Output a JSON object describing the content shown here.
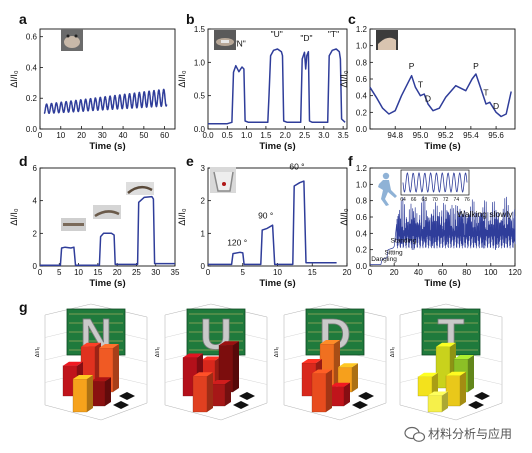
{
  "colors": {
    "trace": "#2f3d9a",
    "photo_dark": "#454545",
    "photo_light": "#d8d8d8",
    "pcb_green": "#1f7a3c",
    "letter_metal": "#c9c9c9",
    "bars_n": [
      "#c0141b",
      "#e0321f",
      "#f05a24",
      "#f6a21c",
      "#8a1010"
    ],
    "bars_u": [
      "#b3101a",
      "#d8281c",
      "#7c0d0d",
      "#e04020",
      "#a61717"
    ],
    "bars_d": [
      "#d8281c",
      "#f07020",
      "#f6a01c",
      "#e84c1e",
      "#c0141b"
    ],
    "bars_t": [
      "#f3e21c",
      "#c9d21c",
      "#8cbf26",
      "#f6f04a",
      "#e9c81a"
    ]
  },
  "icons": {
    "runner": "running-person-icon",
    "watermark": "wechat-logo-icon"
  },
  "watermark": {
    "text": "材料分析与应用"
  },
  "chart_data": [
    {
      "panel": "a",
      "type": "line",
      "xlabel": "Time (s)",
      "ylabel": "ΔI/I₀",
      "xlim": [
        0,
        65
      ],
      "ylim": [
        0.0,
        0.65
      ],
      "xticks": [
        "0",
        "10",
        "20",
        "30",
        "40",
        "50",
        "60"
      ],
      "yticks": [
        "0.0",
        "0.2",
        "0.4",
        "0.6"
      ],
      "signal": {
        "kind": "periodic",
        "t0": 2,
        "t1": 61,
        "period": 2.35,
        "base_start": 0.1,
        "base_end": 0.15,
        "peak_start": 0.16,
        "peak_end": 0.26
      }
    },
    {
      "panel": "b",
      "type": "line",
      "xlabel": "Time (s)",
      "ylabel": "ΔI/I₀",
      "xlim": [
        0,
        3.6
      ],
      "ylim": [
        0.0,
        1.5
      ],
      "xticks": [
        "0.0",
        "0.5",
        "1.0",
        "1.5",
        "2.0",
        "2.5",
        "3.0",
        "3.5"
      ],
      "yticks": [
        "0.0",
        "0.5",
        "1.0",
        "1.5"
      ],
      "annotations": [
        {
          "text": "\"N\"",
          "x": 0.82,
          "y": 1.24
        },
        {
          "text": "\"U\"",
          "x": 1.78,
          "y": 1.38
        },
        {
          "text": "\"D\"",
          "x": 2.55,
          "y": 1.32
        },
        {
          "text": "\"T\"",
          "x": 3.25,
          "y": 1.38
        }
      ],
      "points": [
        [
          0.0,
          0.08
        ],
        [
          0.5,
          0.08
        ],
        [
          0.62,
          0.1
        ],
        [
          0.66,
          0.85
        ],
        [
          0.72,
          0.95
        ],
        [
          0.8,
          0.86
        ],
        [
          0.88,
          0.93
        ],
        [
          0.93,
          0.9
        ],
        [
          0.96,
          0.12
        ],
        [
          1.05,
          0.1
        ],
        [
          1.55,
          0.1
        ],
        [
          1.58,
          0.5
        ],
        [
          1.62,
          1.1
        ],
        [
          1.7,
          1.18
        ],
        [
          1.8,
          1.2
        ],
        [
          1.9,
          1.16
        ],
        [
          1.93,
          1.1
        ],
        [
          1.96,
          0.12
        ],
        [
          2.05,
          0.1
        ],
        [
          2.4,
          0.1
        ],
        [
          2.44,
          1.05
        ],
        [
          2.5,
          1.15
        ],
        [
          2.53,
          0.9
        ],
        [
          2.56,
          1.1
        ],
        [
          2.6,
          1.16
        ],
        [
          2.63,
          0.12
        ],
        [
          2.7,
          0.1
        ],
        [
          3.1,
          0.1
        ],
        [
          3.14,
          1.1
        ],
        [
          3.22,
          1.18
        ],
        [
          3.32,
          1.2
        ],
        [
          3.4,
          1.16
        ],
        [
          3.43,
          1.05
        ],
        [
          3.46,
          0.15
        ],
        [
          3.55,
          0.1
        ]
      ]
    },
    {
      "panel": "c",
      "type": "line",
      "xlabel": "Time (s)",
      "ylabel": "ΔI/I₀",
      "xlim": [
        94.6,
        95.75
      ],
      "ylim": [
        0.0,
        1.2
      ],
      "xticks": [
        "94.8",
        "95.0",
        "95.2",
        "95.4",
        "95.6"
      ],
      "yticks": [
        "0.0",
        "0.2",
        "0.4",
        "0.6",
        "0.8",
        "1.0",
        "1.2"
      ],
      "annotations": [
        {
          "text": "P",
          "x": 94.93,
          "y": 0.72
        },
        {
          "text": "T",
          "x": 95.0,
          "y": 0.5
        },
        {
          "text": "D",
          "x": 95.06,
          "y": 0.33
        },
        {
          "text": "P",
          "x": 95.44,
          "y": 0.72
        },
        {
          "text": "T",
          "x": 95.52,
          "y": 0.4
        },
        {
          "text": "D",
          "x": 95.6,
          "y": 0.24
        }
      ],
      "points": [
        [
          94.6,
          0.5
        ],
        [
          94.65,
          0.38
        ],
        [
          94.7,
          0.25
        ],
        [
          94.75,
          0.18
        ],
        [
          94.8,
          0.22
        ],
        [
          94.85,
          0.4
        ],
        [
          94.9,
          0.55
        ],
        [
          94.93,
          0.64
        ],
        [
          94.96,
          0.5
        ],
        [
          95.0,
          0.4
        ],
        [
          95.03,
          0.42
        ],
        [
          95.06,
          0.3
        ],
        [
          95.1,
          0.22
        ],
        [
          95.15,
          0.25
        ],
        [
          95.2,
          0.38
        ],
        [
          95.28,
          0.52
        ],
        [
          95.36,
          0.46
        ],
        [
          95.41,
          0.6
        ],
        [
          95.44,
          0.66
        ],
        [
          95.48,
          0.48
        ],
        [
          95.52,
          0.3
        ],
        [
          95.55,
          0.32
        ],
        [
          95.6,
          0.2
        ],
        [
          95.64,
          0.15
        ],
        [
          95.68,
          0.18
        ],
        [
          95.72,
          0.45
        ]
      ]
    },
    {
      "panel": "d",
      "type": "line",
      "xlabel": "Time (s)",
      "ylabel": "ΔI/I₀",
      "xlim": [
        0,
        35
      ],
      "ylim": [
        0,
        6
      ],
      "xticks": [
        "0",
        "5",
        "10",
        "15",
        "20",
        "25",
        "30",
        "35"
      ],
      "yticks": [
        "0",
        "2",
        "4",
        "6"
      ],
      "points": [
        [
          0,
          0.05
        ],
        [
          5.3,
          0.05
        ],
        [
          5.6,
          1.1
        ],
        [
          6.5,
          1.15
        ],
        [
          8,
          1.1
        ],
        [
          8.8,
          1.15
        ],
        [
          9.2,
          0.05
        ],
        [
          15.4,
          0.05
        ],
        [
          15.7,
          1.8
        ],
        [
          16.5,
          2.0
        ],
        [
          18.5,
          2.0
        ],
        [
          19.2,
          1.9
        ],
        [
          19.5,
          0.1
        ],
        [
          25.3,
          0.1
        ],
        [
          25.6,
          3.9
        ],
        [
          27,
          4.2
        ],
        [
          29,
          4.25
        ],
        [
          29.4,
          4.1
        ],
        [
          29.7,
          0.15
        ],
        [
          35,
          0.15
        ]
      ]
    },
    {
      "panel": "e",
      "type": "line",
      "xlabel": "Time (s)",
      "ylabel": "ΔI/I₀",
      "xlim": [
        0,
        20
      ],
      "ylim": [
        0,
        3
      ],
      "xticks": [
        "0",
        "5",
        "10",
        "15",
        "20"
      ],
      "yticks": [
        "0",
        "1",
        "2",
        "3"
      ],
      "annotations": [
        {
          "text": "120 °",
          "x": 4.2,
          "y": 0.62
        },
        {
          "text": "90 °",
          "x": 8.3,
          "y": 1.45
        },
        {
          "text": "60 °",
          "x": 12.8,
          "y": 2.95
        }
      ],
      "points": [
        [
          0,
          0.05
        ],
        [
          3.4,
          0.05
        ],
        [
          3.6,
          0.38
        ],
        [
          4.6,
          0.42
        ],
        [
          5.0,
          0.4
        ],
        [
          5.2,
          0.05
        ],
        [
          7.6,
          0.05
        ],
        [
          7.8,
          1.1
        ],
        [
          8.5,
          1.15
        ],
        [
          9.3,
          1.25
        ],
        [
          9.6,
          0.05
        ],
        [
          12.2,
          0.05
        ],
        [
          12.4,
          2.45
        ],
        [
          13.2,
          2.55
        ],
        [
          13.8,
          2.6
        ],
        [
          14.1,
          0.1
        ],
        [
          18.5,
          0.1
        ]
      ]
    },
    {
      "panel": "f",
      "type": "line",
      "xlabel": "Time (s)",
      "ylabel": "ΔI/I₀",
      "xlim": [
        0,
        120
      ],
      "ylim": [
        0.0,
        1.2
      ],
      "xticks": [
        "0",
        "20",
        "40",
        "60",
        "80",
        "100",
        "120"
      ],
      "yticks": [
        "0.0",
        "0.2",
        "0.4",
        "0.6",
        "0.8",
        "1.0",
        "1.2"
      ],
      "annotations": [
        {
          "text": "Dangling",
          "x": 1,
          "y": 0.06
        },
        {
          "text": "Sitting",
          "x": 12,
          "y": 0.14
        },
        {
          "text": "Standing",
          "x": 17,
          "y": 0.29
        },
        {
          "text": "Walking slowly",
          "x": 95,
          "y": 0.6
        }
      ],
      "signal": {
        "kind": "f-walking"
      },
      "inset": {
        "xticks": [
          "64",
          "66",
          "68",
          "70",
          "72",
          "74",
          "76"
        ],
        "period_ticks": 0.75
      }
    }
  ],
  "bars3d": {
    "panel": "g",
    "zlabel": "ΔI/I₀",
    "letters": [
      "N",
      "U",
      "D",
      "T"
    ],
    "heights": {
      "N": [
        0.55,
        0.75,
        0.8,
        0.6,
        0.45
      ],
      "U": [
        0.7,
        0.5,
        0.85,
        0.65,
        0.4
      ],
      "D": [
        0.6,
        0.8,
        0.45,
        0.7,
        0.35
      ],
      "T": [
        0.35,
        0.75,
        0.6,
        0.3,
        0.55
      ]
    }
  }
}
